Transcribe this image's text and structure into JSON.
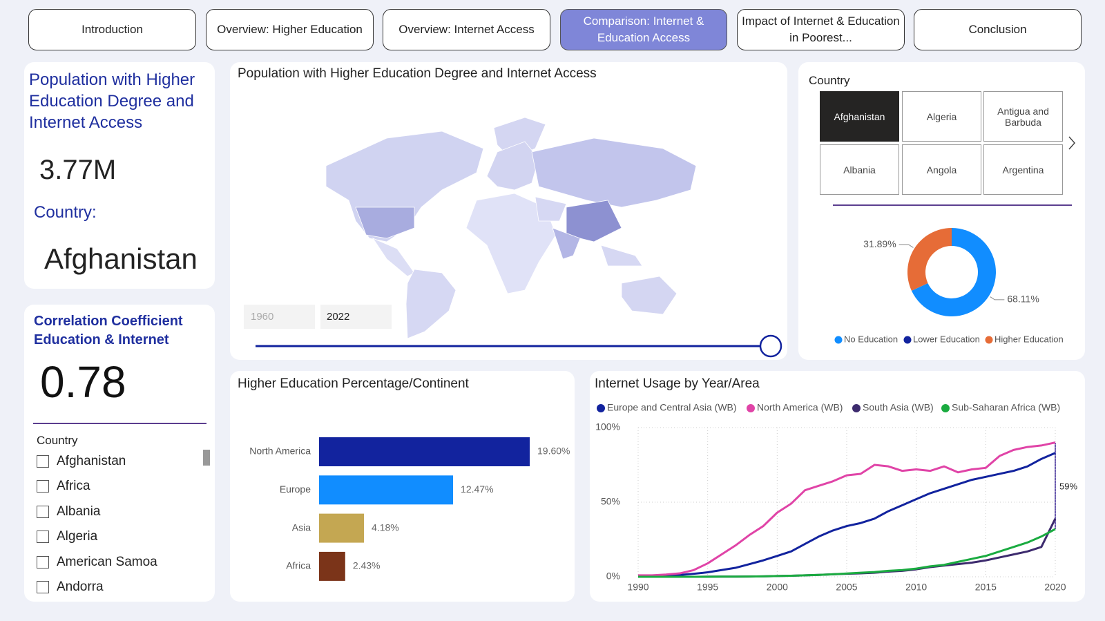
{
  "tabs": [
    "Introduction",
    "Overview: Higher Education",
    "Overview: Internet Access",
    "Comparison: Internet & Education Access",
    "Impact of Internet & Education in Poorest...",
    "Conclusion"
  ],
  "active_tab": 3,
  "kpi_population": {
    "title": "Population with Higher Education Degree and Internet Access",
    "value": "3.77M",
    "country_label": "Country:",
    "country": "Afghanistan"
  },
  "kpi_correlation": {
    "title": "Correlation Coefficient Education & Internet",
    "value": "0.78"
  },
  "country_list": {
    "header": "Country",
    "items": [
      "Afghanistan",
      "Africa",
      "Albania",
      "Algeria",
      "American Samoa",
      "Andorra"
    ]
  },
  "country_slicer": {
    "header": "Country",
    "items": [
      "Afghanistan",
      "Algeria",
      "Antigua and Barbuda",
      "Albania",
      "Angola",
      "Argentina"
    ],
    "selected": 0
  },
  "map": {
    "title": "Population with Higher Education Degree and Internet Access",
    "slider_start": "1960",
    "slider_end": "2022"
  },
  "chart_data": [
    {
      "type": "bar",
      "orientation": "horizontal",
      "title": "Higher Education Percentage/Continent",
      "categories": [
        "North America",
        "Europe",
        "Asia",
        "Africa"
      ],
      "values": [
        19.6,
        12.47,
        4.18,
        2.43
      ],
      "value_labels": [
        "19.60%",
        "12.47%",
        "4.18%",
        "2.43%"
      ],
      "colors": [
        "#12239e",
        "#118dff",
        "#c4a752",
        "#7b3419"
      ]
    },
    {
      "type": "donut",
      "categories": [
        "No Education",
        "Lower Education",
        "Higher Education"
      ],
      "values": [
        68.11,
        0,
        31.89
      ],
      "value_labels": [
        "68.11%",
        null,
        "31.89%"
      ],
      "colors": [
        "#118dff",
        "#12239e",
        "#e66c37"
      ],
      "legend": "bottom"
    },
    {
      "type": "line",
      "title": "Internet Usage by Year/Area",
      "x": [
        1990,
        1991,
        1992,
        1993,
        1994,
        1995,
        1996,
        1997,
        1998,
        1999,
        2000,
        2001,
        2002,
        2003,
        2004,
        2005,
        2006,
        2007,
        2008,
        2009,
        2010,
        2011,
        2012,
        2013,
        2014,
        2015,
        2016,
        2017,
        2018,
        2019,
        2020
      ],
      "xlim": [
        1990,
        2020
      ],
      "xticks": [
        1990,
        1995,
        2000,
        2005,
        2010,
        2015,
        2020
      ],
      "ylim": [
        0,
        100
      ],
      "yticks": [
        {
          "value": 0,
          "label": "0%"
        },
        {
          "value": 50,
          "label": "50%"
        },
        {
          "value": 100,
          "label": "100%"
        }
      ],
      "grid": true,
      "legend": "top",
      "annotation": "59%",
      "series": [
        {
          "name": "Europe and Central Asia (WB)",
          "color": "#12239e",
          "values": [
            0.3,
            0.5,
            0.8,
            1.2,
            2,
            3,
            4.5,
            6,
            8.5,
            11,
            14,
            17,
            22,
            27,
            31,
            34,
            36,
            39,
            44,
            48,
            52,
            56,
            59,
            62,
            65,
            67,
            69,
            71,
            74,
            79,
            83
          ]
        },
        {
          "name": "North America (WB)",
          "color": "#e044a7",
          "values": [
            1,
            1,
            1.5,
            2.3,
            4.5,
            9,
            15,
            21,
            28,
            34,
            43,
            49,
            58,
            61,
            64,
            68,
            69,
            75,
            74,
            71,
            72,
            71,
            74,
            70,
            72,
            73,
            81,
            85,
            87,
            88,
            90
          ]
        },
        {
          "name": "South Asia (WB)",
          "color": "#3d2b6e",
          "values": [
            0,
            0,
            0,
            0,
            0,
            0.1,
            0.1,
            0.1,
            0.2,
            0.3,
            0.5,
            0.7,
            1,
            1.3,
            1.7,
            2,
            2.3,
            2.7,
            3.5,
            4,
            5,
            6.5,
            7.5,
            8.5,
            9.5,
            11,
            13,
            15,
            17,
            20,
            39
          ]
        },
        {
          "name": "Sub-Saharan Africa (WB)",
          "color": "#1aab40",
          "values": [
            0,
            0,
            0,
            0,
            0,
            0,
            0.1,
            0.1,
            0.2,
            0.3,
            0.5,
            0.7,
            1,
            1.3,
            1.7,
            2.2,
            2.7,
            3.2,
            4,
            4.5,
            5.5,
            7,
            8,
            10,
            12,
            14,
            17,
            20,
            23,
            27,
            32
          ]
        }
      ]
    }
  ]
}
